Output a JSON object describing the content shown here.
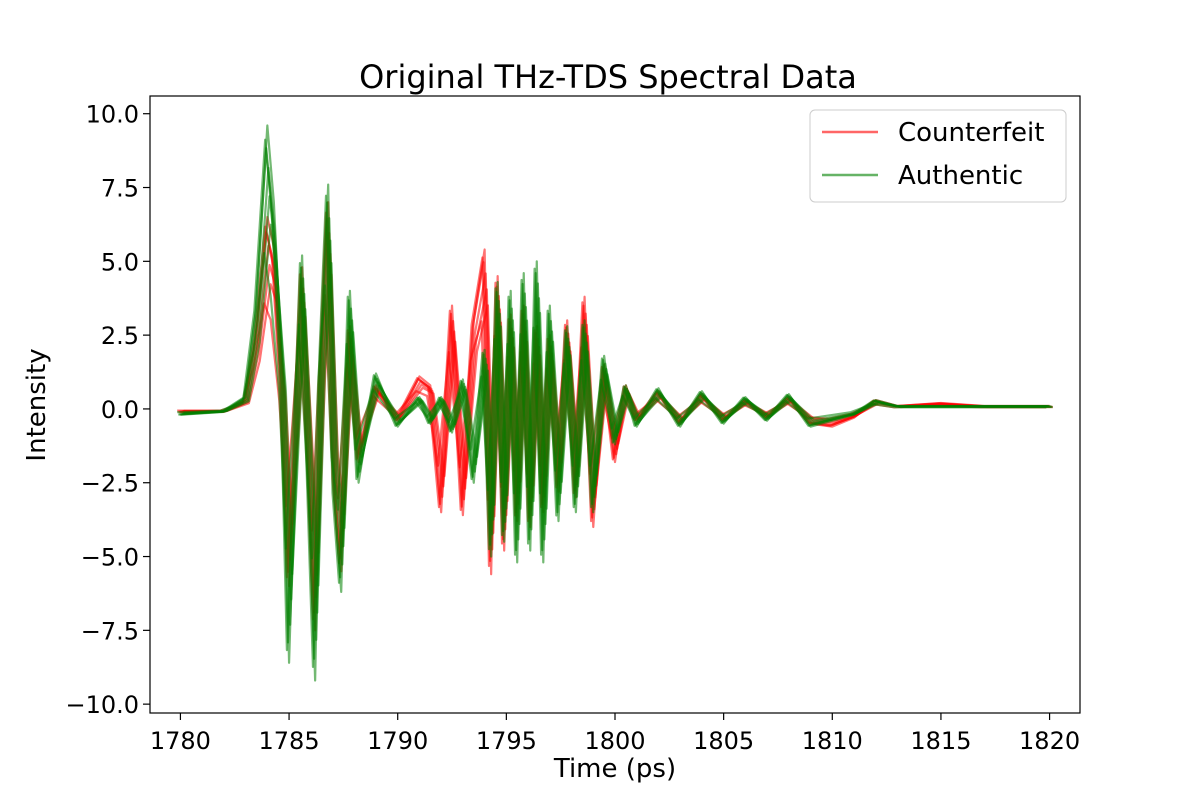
{
  "chart_data": {
    "type": "line",
    "title": "Original THz-TDS Spectral Data",
    "xlabel": "Time (ps)",
    "ylabel": "Intensity",
    "xlim": [
      1778.6,
      1821.4
    ],
    "ylim": [
      -10.3,
      10.6
    ],
    "xticks": [
      1780,
      1785,
      1790,
      1795,
      1800,
      1805,
      1810,
      1815,
      1820
    ],
    "xtick_labels": [
      "1780",
      "1785",
      "1790",
      "1795",
      "1800",
      "1805",
      "1810",
      "1815",
      "1820"
    ],
    "yticks": [
      10.0,
      7.5,
      5.0,
      2.5,
      0.0,
      -2.5,
      -5.0,
      -7.5,
      -10.0
    ],
    "ytick_labels": [
      "10.0",
      "7.5",
      "5.0",
      "2.5",
      "0.0",
      "−2.5",
      "−5.0",
      "−7.5",
      "−10.0"
    ],
    "grid": false,
    "legend_position": "top-right",
    "series": [
      {
        "name": "Counterfeit",
        "color": "#ff0000",
        "x": [
          1780,
          1782,
          1783,
          1783.5,
          1784,
          1784.3,
          1784.7,
          1785,
          1785.3,
          1785.6,
          1785.9,
          1786.2,
          1786.5,
          1786.8,
          1787.1,
          1787.4,
          1787.8,
          1788.2,
          1789,
          1790,
          1791,
          1791.5,
          1792,
          1792.5,
          1793,
          1793.5,
          1794,
          1794.3,
          1794.6,
          1794.9,
          1795.2,
          1795.5,
          1795.8,
          1796.1,
          1796.4,
          1796.7,
          1797,
          1797.4,
          1797.8,
          1798.2,
          1798.6,
          1799,
          1799.5,
          1800,
          1800.5,
          1801,
          1802,
          1803,
          1804,
          1805,
          1806,
          1807,
          1808,
          1809,
          1810,
          1811,
          1812,
          1813,
          1815,
          1817,
          1820
        ],
        "values": [
          -0.1,
          -0.1,
          0.3,
          2.5,
          6.5,
          5.5,
          0.5,
          -6.0,
          -1.0,
          4.8,
          -1.5,
          -7.5,
          1.5,
          7.0,
          -2.5,
          -5.5,
          2.8,
          -1.8,
          0.8,
          -0.4,
          1.1,
          0.8,
          -3.5,
          3.5,
          -3.6,
          3.0,
          5.4,
          -5.6,
          4.5,
          -4.8,
          3.2,
          -3.8,
          3.5,
          -4.0,
          2.8,
          -3.5,
          2.5,
          -2.8,
          3.0,
          -3.0,
          3.8,
          -4.0,
          1.5,
          -1.8,
          0.8,
          -0.4,
          0.6,
          -0.5,
          0.5,
          -0.4,
          0.3,
          -0.3,
          0.4,
          -0.5,
          -0.6,
          -0.3,
          0.3,
          0.1,
          0.2,
          0.1,
          0.1
        ]
      },
      {
        "name": "Authentic",
        "color": "#008000",
        "x": [
          1780,
          1782,
          1783,
          1783.5,
          1784,
          1784.3,
          1784.7,
          1785,
          1785.3,
          1785.6,
          1785.9,
          1786.2,
          1786.5,
          1786.8,
          1787.1,
          1787.4,
          1787.8,
          1788.2,
          1789,
          1790,
          1791,
          1791.5,
          1792,
          1792.5,
          1793,
          1793.5,
          1794,
          1794.3,
          1794.6,
          1794.9,
          1795.2,
          1795.5,
          1795.8,
          1796.1,
          1796.4,
          1796.7,
          1797,
          1797.4,
          1797.8,
          1798.2,
          1798.6,
          1799,
          1799.5,
          1800,
          1800.5,
          1801,
          1802,
          1803,
          1804,
          1805,
          1806,
          1807,
          1808,
          1809,
          1810,
          1811,
          1812,
          1813,
          1815,
          1817,
          1820
        ],
        "values": [
          -0.2,
          -0.1,
          0.4,
          3.5,
          9.6,
          7.0,
          1.0,
          -8.6,
          -1.5,
          5.2,
          -2.0,
          -9.2,
          2.0,
          7.6,
          -3.0,
          -6.2,
          4.0,
          -2.5,
          1.2,
          -0.6,
          0.4,
          -0.5,
          0.4,
          -0.8,
          1.0,
          -2.5,
          2.0,
          -5.0,
          4.3,
          -4.5,
          4.0,
          -5.2,
          4.6,
          -4.8,
          5.0,
          -5.2,
          3.5,
          -3.8,
          2.8,
          -3.5,
          3.0,
          -3.5,
          1.8,
          -1.2,
          0.8,
          -0.6,
          0.7,
          -0.6,
          0.6,
          -0.5,
          0.4,
          -0.4,
          0.5,
          -0.6,
          -0.4,
          -0.2,
          0.3,
          0.1,
          0.1,
          0.1,
          0.1
        ]
      }
    ]
  }
}
